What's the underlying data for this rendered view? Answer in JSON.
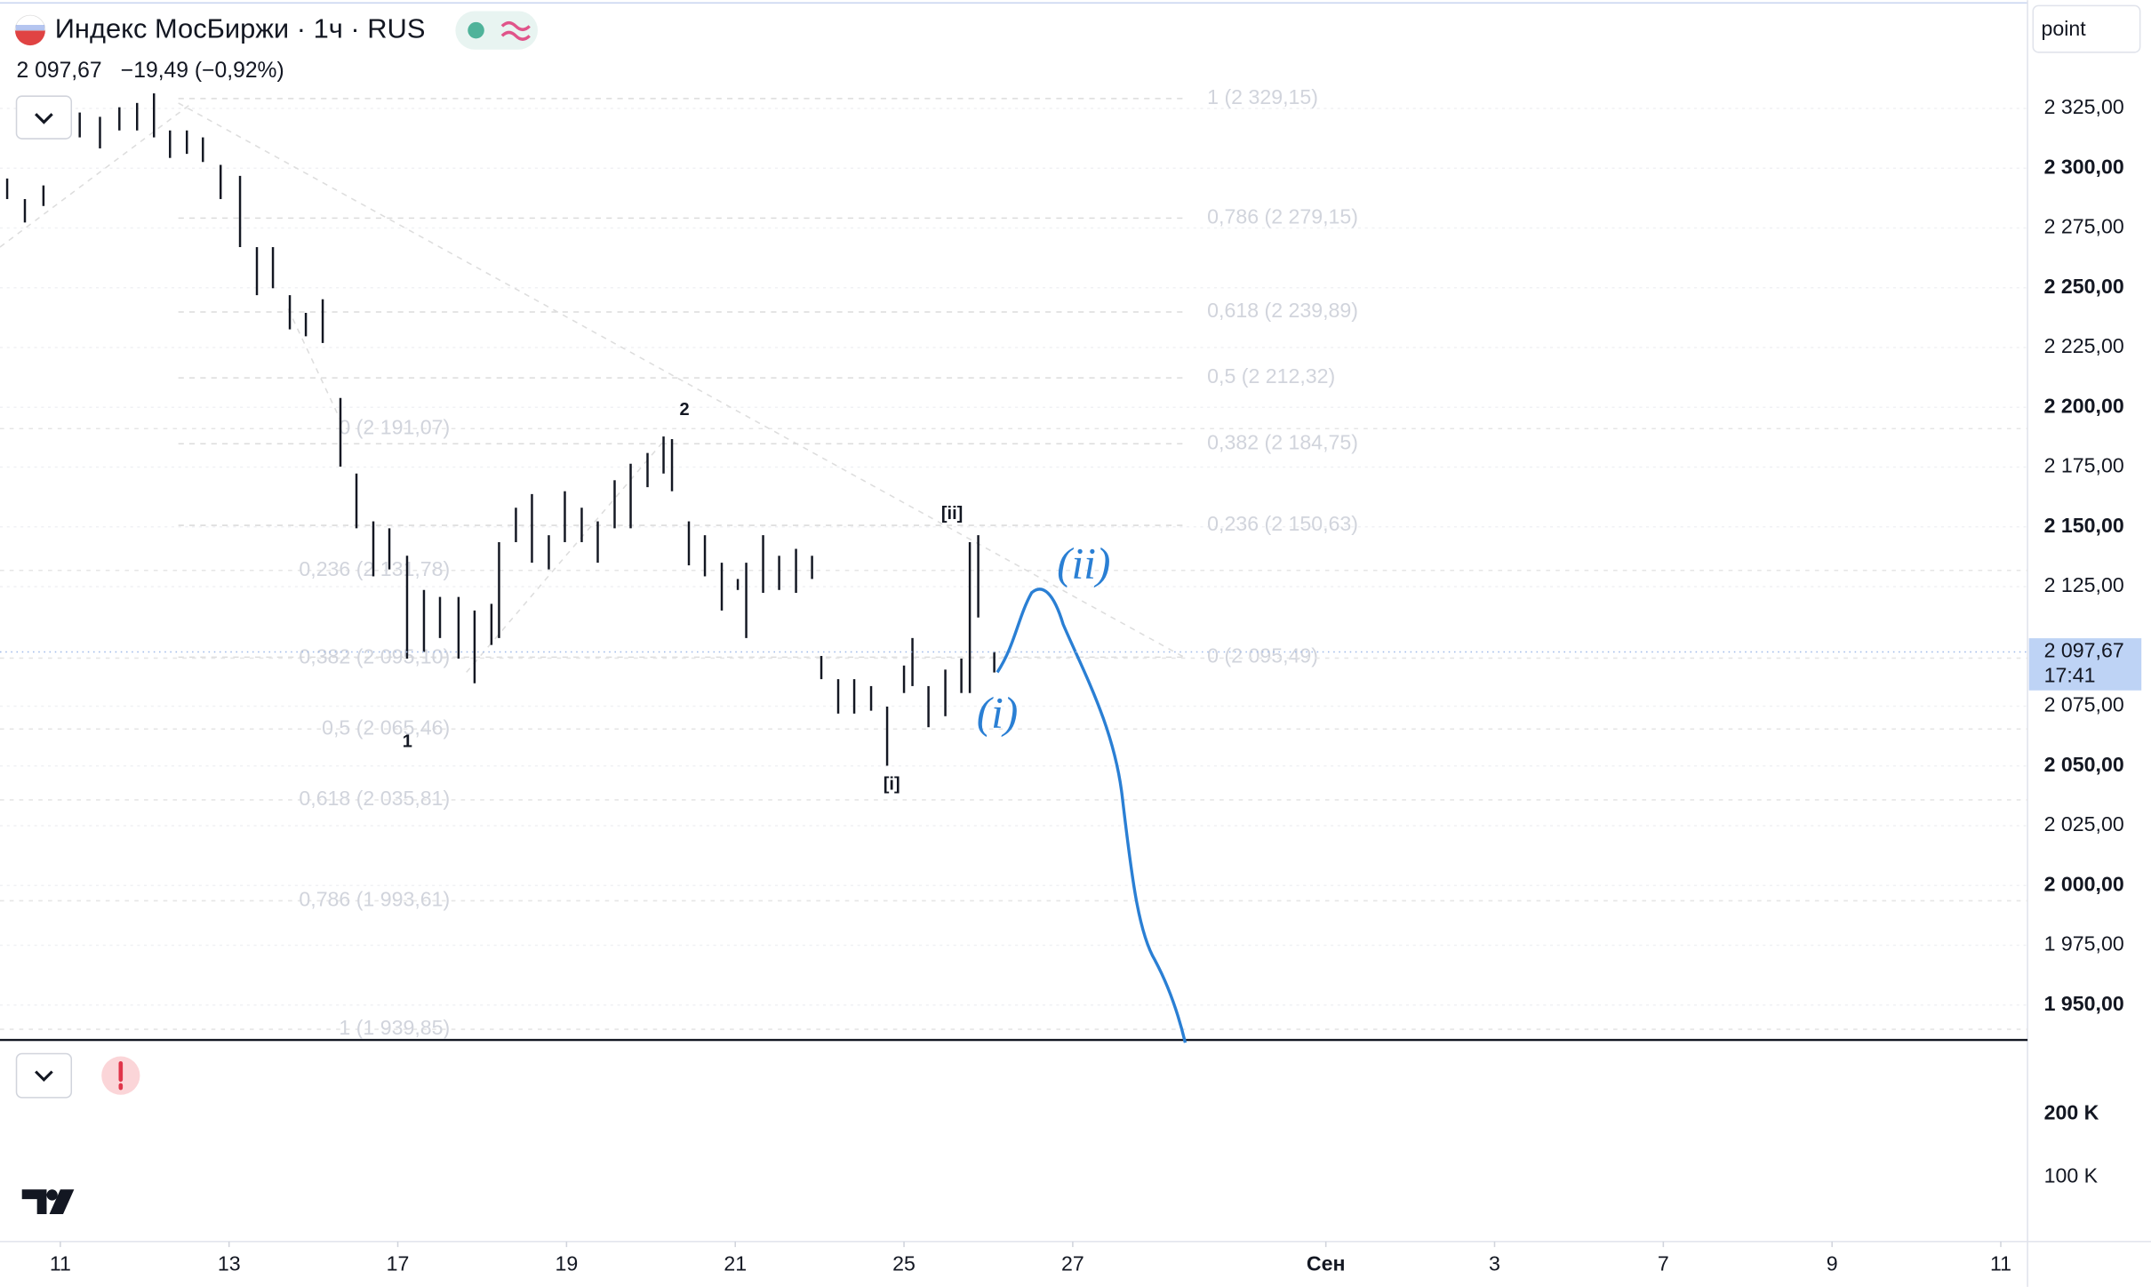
{
  "header": {
    "title": "Индекс МосБиржи · 1ч · RUS",
    "price": "2 097,67",
    "change": "−19,49 (−0,92%)",
    "mode": "point"
  },
  "chart_data": {
    "type": "ohlc",
    "x": [
      -0.63,
      -0.42,
      -0.2,
      0.23,
      0.47,
      0.7,
      0.91,
      1.11,
      1.3,
      1.5,
      1.69,
      1.9,
      2.13,
      2.33,
      2.52,
      2.72,
      2.91,
      3.11,
      3.32,
      3.51,
      3.71,
      3.9,
      4.11,
      4.31,
      4.5,
      4.72,
      4.91,
      5.11,
      5.2,
      5.4,
      5.59,
      5.79,
      5.98,
      6.18,
      6.37,
      6.57,
      6.76,
      6.96,
      7.15,
      7.25,
      7.45,
      7.64,
      7.84,
      8.03,
      8.13,
      8.33,
      8.52,
      8.72,
      8.91,
      9.02,
      9.22,
      9.41,
      9.61,
      9.8,
      10.0,
      10.1,
      10.29,
      10.49,
      10.68,
      10.78,
      10.88,
      11.07
    ],
    "high": [
      2295.7,
      2287.1,
      2292.8,
      2323.3,
      2321.5,
      2325.5,
      2327.3,
      2331.3,
      2315.8,
      2315.8,
      2312.9,
      2301.4,
      2296.8,
      2267.0,
      2267.0,
      2246.9,
      2239.5,
      2245.2,
      2203.9,
      2172.3,
      2152.3,
      2149.4,
      2137.9,
      2123.6,
      2120.7,
      2120.7,
      2115.0,
      2117.8,
      2143.6,
      2158.0,
      2163.7,
      2146.5,
      2164.9,
      2158.0,
      2152.3,
      2169.5,
      2176.4,
      2180.9,
      2187.8,
      2186.7,
      2152.3,
      2146.5,
      2135.0,
      2128.2,
      2135.0,
      2146.5,
      2137.9,
      2140.8,
      2137.9,
      2096.0,
      2086.3,
      2086.3,
      2083.4,
      2074.8,
      2092.0,
      2103.5,
      2083.4,
      2090.3,
      2094.9,
      2143.6,
      2146.5,
      2097.7
    ],
    "low": [
      2287.1,
      2277.3,
      2284.2,
      2312.9,
      2308.3,
      2315.8,
      2315.8,
      2312.9,
      2304.3,
      2306.0,
      2302.6,
      2287.1,
      2267.0,
      2246.9,
      2249.8,
      2232.6,
      2229.7,
      2226.9,
      2175.2,
      2149.4,
      2129.3,
      2132.2,
      2094.9,
      2097.7,
      2103.5,
      2094.9,
      2084.6,
      2100.6,
      2103.5,
      2143.6,
      2135.0,
      2132.2,
      2143.6,
      2143.6,
      2135.0,
      2149.4,
      2149.4,
      2166.6,
      2172.3,
      2164.9,
      2133.9,
      2129.3,
      2115.0,
      2123.6,
      2103.5,
      2122.4,
      2123.6,
      2122.4,
      2128.2,
      2086.3,
      2071.9,
      2071.9,
      2073.1,
      2050.1,
      2080.5,
      2083.4,
      2066.2,
      2070.8,
      2080.5,
      2080.5,
      2112.1,
      2089.1
    ],
    "color": "#131722",
    "ylim": [
      1935.4,
      2370.3
    ],
    "yticks": [
      {
        "value": 2325,
        "label": "2 325,00"
      },
      {
        "value": 2300,
        "label": "2 300,00"
      },
      {
        "value": 2275,
        "label": "2 275,00"
      },
      {
        "value": 2250,
        "label": "2 250,00"
      },
      {
        "value": 2225,
        "label": "2 225,00"
      },
      {
        "value": 2200,
        "label": "2 200,00"
      },
      {
        "value": 2175,
        "label": "2 175,00"
      },
      {
        "value": 2150,
        "label": "2 150,00"
      },
      {
        "value": 2125,
        "label": "2 125,00"
      },
      {
        "value": 2075,
        "label": "2 075,00"
      },
      {
        "value": 2050,
        "label": "2 050,00"
      },
      {
        "value": 2025,
        "label": "2 025,00"
      },
      {
        "value": 2000,
        "label": "2 000,00"
      },
      {
        "value": 1975,
        "label": "1 975,00"
      },
      {
        "value": 1950,
        "label": "1 950,00"
      }
    ],
    "xlim": [
      -0.715,
      23.317
    ],
    "xticks": [
      {
        "value": 0,
        "label": "11"
      },
      {
        "value": 2,
        "label": "13"
      },
      {
        "value": 4,
        "label": "17"
      },
      {
        "value": 6,
        "label": "19"
      },
      {
        "value": 8,
        "label": "21"
      },
      {
        "value": 10,
        "label": "25"
      },
      {
        "value": 12,
        "label": "27"
      },
      {
        "value": 15,
        "label": "Сен"
      },
      {
        "value": 17,
        "label": "3"
      },
      {
        "value": 19,
        "label": "7"
      },
      {
        "value": 21,
        "label": "9"
      },
      {
        "value": 23,
        "label": "11"
      }
    ],
    "last_price": {
      "value": 2097.67,
      "label": "2 097,67"
    },
    "time_left": "17:41",
    "fib_right": [
      {
        "value": 2329.15,
        "label": "1 (2 329,15)"
      },
      {
        "value": 2279.15,
        "label": "0,786 (2 279,15)"
      },
      {
        "value": 2239.89,
        "label": "0,618 (2 239,89)"
      },
      {
        "value": 2212.32,
        "label": "0,5 (2 212,32)"
      },
      {
        "value": 2184.75,
        "label": "0,382 (2 184,75)"
      },
      {
        "value": 2150.63,
        "label": "0,236 (2 150,63)"
      },
      {
        "value": 2095.49,
        "label": "0 (2 095,49)"
      }
    ],
    "fib_left": [
      {
        "value": 2191.07,
        "label": "0 (2 191,07)"
      },
      {
        "value": 2131.78,
        "label": "0,236 (2 131,78)"
      },
      {
        "value": 2095.1,
        "label": "0,382 (2 095,10)"
      },
      {
        "value": 2065.46,
        "label": "0,5 (2 065,46)"
      },
      {
        "value": 2035.81,
        "label": "0,618 (2 035,81)"
      },
      {
        "value": 1993.61,
        "label": "0,786 (1 993,61)"
      },
      {
        "value": 1939.85,
        "label": "1 (1 939,85)"
      }
    ],
    "annotations": [
      "2",
      "1",
      "[ii]",
      "[i]",
      "(ii)",
      "(i)"
    ],
    "volume_lim": [
      0,
      313000
    ],
    "volume_ticks": [
      {
        "value": 200000,
        "label": "200 K"
      },
      {
        "value": 100000,
        "label": "100 K"
      }
    ]
  }
}
